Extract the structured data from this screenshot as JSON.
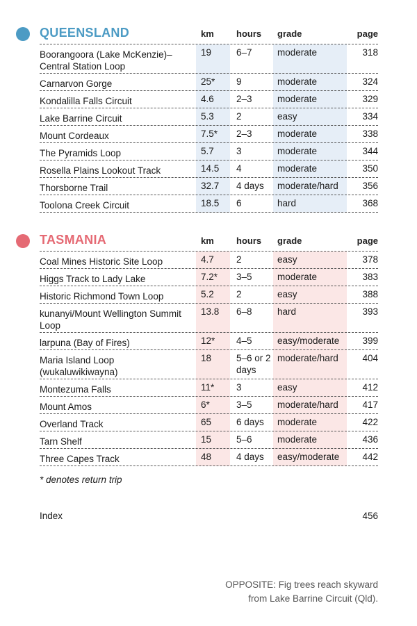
{
  "colors": {
    "queensland": "#4c9bc4",
    "tasmania": "#e56a74",
    "qld_shade": "#e6eef7",
    "tas_shade": "#fbe7e6"
  },
  "columns": {
    "km": "km",
    "hours": "hours",
    "grade": "grade",
    "page": "page"
  },
  "queensland": {
    "title": "QUEENSLAND",
    "rows": [
      {
        "name": "Boorangoora (Lake McKenzie)–Central Station Loop",
        "km": "19",
        "hours": "6–7",
        "grade": "moderate",
        "page": "318"
      },
      {
        "name": "Carnarvon Gorge",
        "km": "25*",
        "hours": "9",
        "grade": "moderate",
        "page": "324"
      },
      {
        "name": "Kondalilla Falls Circuit",
        "km": "4.6",
        "hours": "2–3",
        "grade": "moderate",
        "page": "329"
      },
      {
        "name": "Lake Barrine Circuit",
        "km": "5.3",
        "hours": "2",
        "grade": "easy",
        "page": "334"
      },
      {
        "name": "Mount Cordeaux",
        "km": "7.5*",
        "hours": "2–3",
        "grade": "moderate",
        "page": "338"
      },
      {
        "name": "The Pyramids Loop",
        "km": "5.7",
        "hours": "3",
        "grade": "moderate",
        "page": "344"
      },
      {
        "name": "Rosella Plains Lookout Track",
        "km": "14.5",
        "hours": "4",
        "grade": "moderate",
        "page": "350"
      },
      {
        "name": "Thorsborne Trail",
        "km": "32.7",
        "hours": "4 days",
        "grade": "moderate/hard",
        "page": "356"
      },
      {
        "name": "Toolona Creek Circuit",
        "km": "18.5",
        "hours": "6",
        "grade": "hard",
        "page": "368"
      }
    ]
  },
  "tasmania": {
    "title": "TASMANIA",
    "rows": [
      {
        "name": "Coal Mines Historic Site Loop",
        "km": "4.7",
        "hours": "2",
        "grade": "easy",
        "page": "378"
      },
      {
        "name": "Higgs Track to Lady Lake",
        "km": "7.2*",
        "hours": "3–5",
        "grade": "moderate",
        "page": "383"
      },
      {
        "name": "Historic Richmond Town Loop",
        "km": "5.2",
        "hours": "2",
        "grade": "easy",
        "page": "388"
      },
      {
        "name": "kunanyi/Mount Wellington Summit Loop",
        "km": "13.8",
        "hours": "6–8",
        "grade": "hard",
        "page": "393"
      },
      {
        "name": "larpuna (Bay of Fires)",
        "km": "12*",
        "hours": "4–5",
        "grade": "easy/moderate",
        "page": "399"
      },
      {
        "name": "Maria Island Loop (wukaluwikiwayna)",
        "km": "18",
        "hours": "5–6 or 2 days",
        "grade": "moderate/hard",
        "page": "404"
      },
      {
        "name": "Montezuma Falls",
        "km": "11*",
        "hours": "3",
        "grade": "easy",
        "page": "412"
      },
      {
        "name": "Mount Amos",
        "km": "6*",
        "hours": "3–5",
        "grade": "moderate/hard",
        "page": "417"
      },
      {
        "name": "Overland Track",
        "km": "65",
        "hours": "6 days",
        "grade": "moderate",
        "page": "422"
      },
      {
        "name": "Tarn Shelf",
        "km": "15",
        "hours": "5–6",
        "grade": "moderate",
        "page": "436"
      },
      {
        "name": "Three Capes Track",
        "km": "48",
        "hours": "4 days",
        "grade": "easy/moderate",
        "page": "442"
      }
    ]
  },
  "footnote": "* denotes return trip",
  "index": {
    "label": "Index",
    "page": "456"
  },
  "caption": {
    "line1": "OPPOSITE: Fig trees reach skyward",
    "line2": "from Lake Barrine Circuit (Qld)."
  }
}
